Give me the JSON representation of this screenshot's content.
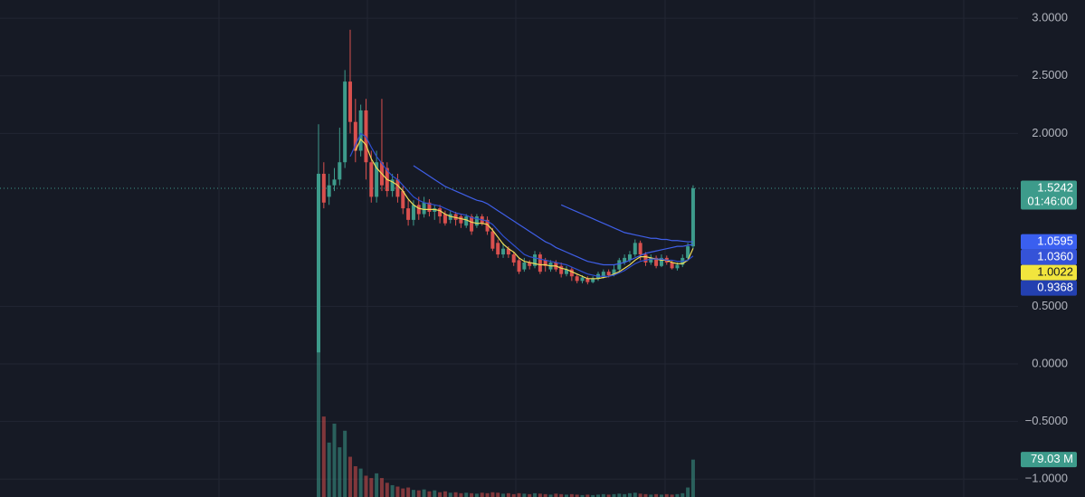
{
  "chart_data": {
    "type": "candlestick",
    "ylim": [
      -1.155,
      3.158
    ],
    "yticks": [
      {
        "value": 3,
        "label": "3.0000"
      },
      {
        "value": 2.5,
        "label": "2.5000"
      },
      {
        "value": 2,
        "label": "2.0000"
      },
      {
        "value": 0.5,
        "label": "0.5000"
      },
      {
        "value": 0,
        "label": "0.0000"
      },
      {
        "value": -0.5,
        "label": "−0.5000"
      },
      {
        "value": -1,
        "label": "−1.0000"
      }
    ],
    "grid": true,
    "up_color": "#3d9b8b",
    "down_color": "#d9504e",
    "open": [
      0.1,
      1.65,
      1.45,
      1.55,
      1.6,
      1.75,
      2.45,
      2.1,
      1.85,
      2.2,
      1.75,
      1.45,
      1.75,
      1.7,
      1.5,
      1.6,
      1.5,
      1.35,
      1.25,
      1.38,
      1.3,
      1.4,
      1.32,
      1.35,
      1.3,
      1.25,
      1.3,
      1.28,
      1.2,
      1.28,
      1.2,
      1.28,
      1.25,
      1.15,
      1.05,
      0.95,
      1.0,
      0.95,
      0.9,
      0.82,
      0.88,
      0.85,
      0.95,
      0.9,
      0.82,
      0.88,
      0.85,
      0.78,
      0.82,
      0.76,
      0.72,
      0.74,
      0.71,
      0.74,
      0.76,
      0.8,
      0.77,
      0.82,
      0.88,
      0.9,
      0.95,
      1.05,
      0.95,
      0.88,
      0.92,
      0.85,
      0.92,
      0.88,
      0.83,
      0.86,
      0.92,
      1.02
    ],
    "high": [
      2.08,
      1.75,
      1.65,
      1.7,
      2.05,
      2.55,
      2.9,
      2.3,
      2.25,
      2.3,
      1.85,
      1.85,
      2.3,
      1.75,
      1.65,
      1.65,
      1.55,
      1.42,
      1.42,
      1.45,
      1.45,
      1.43,
      1.38,
      1.38,
      1.33,
      1.33,
      1.32,
      1.3,
      1.3,
      1.3,
      1.3,
      1.3,
      1.28,
      1.18,
      1.08,
      1.05,
      1.02,
      0.97,
      0.92,
      0.92,
      0.9,
      0.98,
      0.97,
      0.92,
      0.9,
      0.9,
      0.88,
      0.85,
      0.84,
      0.78,
      0.77,
      0.76,
      0.76,
      0.8,
      0.82,
      0.82,
      0.86,
      0.92,
      0.95,
      0.98,
      1.08,
      1.07,
      0.97,
      0.95,
      0.94,
      0.95,
      0.94,
      0.9,
      0.88,
      0.95,
      1.05,
      1.55
    ],
    "low": [
      0.1,
      1.35,
      1.38,
      1.5,
      1.55,
      1.7,
      2.0,
      1.75,
      1.8,
      1.6,
      1.4,
      1.4,
      1.5,
      1.45,
      1.45,
      1.4,
      1.3,
      1.2,
      1.2,
      1.25,
      1.27,
      1.28,
      1.25,
      1.22,
      1.2,
      1.22,
      1.2,
      1.18,
      1.18,
      1.12,
      1.18,
      1.2,
      1.12,
      0.98,
      0.92,
      0.92,
      0.92,
      0.85,
      0.78,
      0.8,
      0.82,
      0.83,
      0.78,
      0.8,
      0.8,
      0.8,
      0.75,
      0.76,
      0.72,
      0.7,
      0.7,
      0.69,
      0.7,
      0.72,
      0.74,
      0.75,
      0.76,
      0.8,
      0.86,
      0.88,
      0.93,
      0.9,
      0.85,
      0.86,
      0.83,
      0.84,
      0.86,
      0.82,
      0.81,
      0.84,
      0.9,
      1.0
    ],
    "close": [
      1.65,
      1.4,
      1.55,
      1.6,
      1.75,
      2.45,
      2.1,
      1.85,
      2.2,
      1.75,
      1.45,
      1.75,
      1.55,
      1.5,
      1.6,
      1.45,
      1.35,
      1.25,
      1.38,
      1.3,
      1.4,
      1.32,
      1.35,
      1.28,
      1.22,
      1.3,
      1.25,
      1.22,
      1.28,
      1.15,
      1.28,
      1.22,
      1.15,
      1.0,
      0.95,
      1.0,
      0.95,
      0.88,
      0.8,
      0.88,
      0.85,
      0.95,
      0.8,
      0.85,
      0.88,
      0.82,
      0.78,
      0.82,
      0.76,
      0.72,
      0.75,
      0.71,
      0.74,
      0.78,
      0.8,
      0.77,
      0.82,
      0.9,
      0.92,
      0.95,
      1.05,
      0.95,
      0.88,
      0.92,
      0.85,
      0.92,
      0.88,
      0.83,
      0.86,
      0.92,
      1.02,
      1.5242
    ],
    "volume": [
      315,
      170,
      115,
      155,
      105,
      140,
      85,
      65,
      60,
      45,
      40,
      50,
      40,
      30,
      25,
      22,
      18,
      20,
      15,
      14,
      16,
      12,
      14,
      10,
      12,
      9,
      10,
      8,
      9,
      8,
      7,
      9,
      8,
      10,
      9,
      7,
      8,
      6,
      8,
      7,
      6,
      8,
      7,
      6,
      5,
      7,
      6,
      5,
      6,
      5,
      4,
      5,
      4,
      5,
      6,
      5,
      6,
      7,
      6,
      8,
      9,
      7,
      6,
      5,
      6,
      5,
      6,
      5,
      6,
      8,
      20,
      79.03
    ],
    "vlim": [
      0,
      1050
    ],
    "volume_label": "79.03 M",
    "series": [
      {
        "color": "#f0dd5a",
        "values": [
          null,
          null,
          null,
          null,
          null,
          null,
          null,
          1.85,
          1.95,
          1.9,
          1.78,
          1.7,
          1.65,
          1.6,
          1.58,
          1.55,
          1.5,
          1.43,
          1.38,
          1.35,
          1.34,
          1.34,
          1.34,
          1.33,
          1.3,
          1.28,
          1.27,
          1.26,
          1.25,
          1.23,
          1.22,
          1.22,
          1.21,
          1.16,
          1.1,
          1.04,
          1.0,
          0.97,
          0.92,
          0.89,
          0.88,
          0.87,
          0.86,
          0.86,
          0.85,
          0.85,
          0.83,
          0.82,
          0.8,
          0.78,
          0.76,
          0.74,
          0.74,
          0.74,
          0.75,
          0.76,
          0.78,
          0.8,
          0.83,
          0.86,
          0.9,
          0.93,
          0.93,
          0.92,
          0.91,
          0.9,
          0.9,
          0.88,
          0.87,
          0.87,
          0.9,
          1.0022
        ]
      },
      {
        "color": "#2f4fd0",
        "values": [
          null,
          null,
          null,
          null,
          null,
          null,
          1.8,
          1.9,
          2.0,
          1.97,
          1.88,
          1.8,
          1.74,
          1.68,
          1.63,
          1.6,
          1.55,
          1.5,
          1.45,
          1.42,
          1.4,
          1.39,
          1.38,
          1.37,
          1.35,
          1.33,
          1.31,
          1.3,
          1.29,
          1.27,
          1.26,
          1.25,
          1.24,
          1.21,
          1.16,
          1.11,
          1.07,
          1.03,
          0.99,
          0.95,
          0.93,
          0.92,
          0.91,
          0.9,
          0.89,
          0.88,
          0.87,
          0.86,
          0.84,
          0.82,
          0.8,
          0.78,
          0.77,
          0.76,
          0.76,
          0.76,
          0.77,
          0.79,
          0.81,
          0.84,
          0.87,
          0.89,
          0.9,
          0.91,
          0.91,
          0.91,
          0.9,
          0.9,
          0.89,
          0.89,
          0.9,
          0.9368
        ]
      },
      {
        "color": "#3f5fe8",
        "values": [
          null,
          null,
          null,
          null,
          null,
          null,
          null,
          null,
          null,
          null,
          null,
          null,
          null,
          null,
          null,
          null,
          null,
          null,
          1.72,
          1.69,
          1.66,
          1.63,
          1.6,
          1.57,
          1.54,
          1.52,
          1.5,
          1.48,
          1.46,
          1.44,
          1.42,
          1.41,
          1.39,
          1.36,
          1.33,
          1.3,
          1.27,
          1.24,
          1.21,
          1.18,
          1.15,
          1.12,
          1.09,
          1.06,
          1.04,
          1.01,
          0.99,
          0.97,
          0.95,
          0.93,
          0.91,
          0.89,
          0.88,
          0.87,
          0.86,
          0.86,
          0.86,
          0.87,
          0.88,
          0.9,
          0.92,
          0.94,
          0.96,
          0.97,
          0.98,
          0.99,
          1.0,
          1.01,
          1.02,
          1.02,
          1.03,
          1.036
        ]
      },
      {
        "color": "#3f5fe8",
        "values": [
          null,
          null,
          null,
          null,
          null,
          null,
          null,
          null,
          null,
          null,
          null,
          null,
          null,
          null,
          null,
          null,
          null,
          null,
          null,
          null,
          null,
          null,
          null,
          null,
          null,
          null,
          null,
          null,
          null,
          null,
          null,
          null,
          null,
          null,
          null,
          null,
          null,
          null,
          null,
          null,
          null,
          null,
          null,
          null,
          null,
          null,
          1.38,
          1.36,
          1.34,
          1.32,
          1.3,
          1.28,
          1.26,
          1.24,
          1.22,
          1.2,
          1.18,
          1.16,
          1.14,
          1.13,
          1.12,
          1.11,
          1.1,
          1.09,
          1.09,
          1.08,
          1.08,
          1.07,
          1.07,
          1.065,
          1.06,
          1.0595
        ]
      }
    ],
    "price_badges": [
      {
        "value": 1.5242,
        "label": "1.5242",
        "sublabel": "01:46:00",
        "color": "#3d9b8b",
        "text_color": "#ffffff"
      },
      {
        "value": 1.0595,
        "label": "1.0595",
        "color": "#3a5ff0",
        "text_color": "#ffffff"
      },
      {
        "value": 1.036,
        "label": "1.0360",
        "color": "#3553d8",
        "text_color": "#ffffff"
      },
      {
        "value": 1.0022,
        "label": "1.0022",
        "color": "#f2e53d",
        "text_color": "#131722"
      },
      {
        "value": 0.9368,
        "label": "0.9368",
        "color": "#2340b0",
        "text_color": "#ffffff"
      }
    ]
  }
}
